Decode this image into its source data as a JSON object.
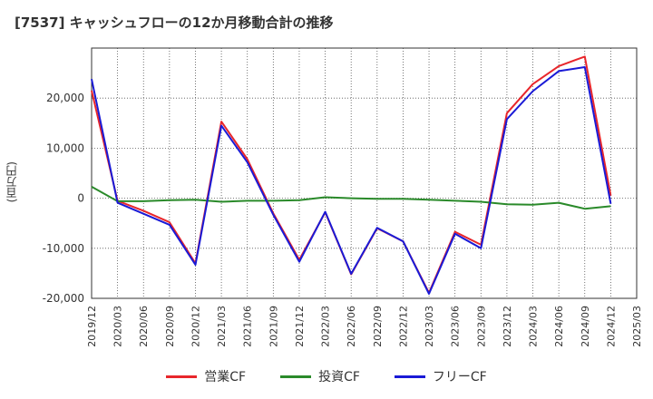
{
  "chart_title": "[7537]  キャッシュフローの12か月移動合計の推移",
  "chart_data": {
    "type": "line",
    "title": "[7537]  キャッシュフローの12か月移動合計の推移",
    "ylabel": "(百万円)",
    "xlabel": "",
    "ylim": [
      -20000,
      30000
    ],
    "y_ticks": [
      -20000,
      -10000,
      0,
      10000,
      20000
    ],
    "y_tick_labels": [
      "-20,000",
      "-10,000",
      "0",
      "10,000",
      "20,000"
    ],
    "x_tick_labels": [
      "2019/12",
      "2020/03",
      "2020/06",
      "2020/09",
      "2020/12",
      "2021/03",
      "2021/06",
      "2021/09",
      "2021/12",
      "2022/03",
      "2022/06",
      "2022/09",
      "2022/12",
      "2023/03",
      "2023/06",
      "2023/09",
      "2023/12",
      "2024/03",
      "2024/06",
      "2024/09",
      "2024/12",
      "2025/03"
    ],
    "grid": true,
    "legend_position": "bottom",
    "series": [
      {
        "name": "営業CF",
        "color": "#e8262b",
        "x": [
          "2019/12",
          "2020/03",
          "2020/06",
          "2020/09",
          "2020/12",
          "2021/03",
          "2021/06",
          "2021/09",
          "2021/12",
          "2022/03",
          "2022/06",
          "2022/09",
          "2022/12",
          "2023/03",
          "2023/06",
          "2023/09",
          "2023/12",
          "2024/03",
          "2024/06",
          "2024/09",
          "2024/12"
        ],
        "values": [
          21500,
          -500,
          -2500,
          -4800,
          -13000,
          15300,
          7800,
          -3000,
          -12300,
          -2800,
          -15200,
          -6000,
          -8600,
          -18900,
          -6700,
          -9300,
          17000,
          22800,
          26400,
          28300,
          500
        ]
      },
      {
        "name": "投資CF",
        "color": "#2a8a2a",
        "x": [
          "2019/12",
          "2020/03",
          "2020/06",
          "2020/09",
          "2020/12",
          "2021/03",
          "2021/06",
          "2021/09",
          "2021/12",
          "2022/03",
          "2022/06",
          "2022/09",
          "2022/12",
          "2023/03",
          "2023/06",
          "2023/09",
          "2023/12",
          "2024/03",
          "2024/06",
          "2024/09",
          "2024/12"
        ],
        "values": [
          2300,
          -600,
          -600,
          -400,
          -300,
          -700,
          -500,
          -500,
          -400,
          200,
          0,
          -100,
          -100,
          -300,
          -500,
          -700,
          -1200,
          -1300,
          -900,
          -2100,
          -1600
        ]
      },
      {
        "name": "フリーCF",
        "color": "#1a1ad6",
        "x": [
          "2019/12",
          "2020/03",
          "2020/06",
          "2020/09",
          "2020/12",
          "2021/03",
          "2021/06",
          "2021/09",
          "2021/12",
          "2022/03",
          "2022/06",
          "2022/09",
          "2022/12",
          "2023/03",
          "2023/06",
          "2023/09",
          "2023/12",
          "2024/03",
          "2024/06",
          "2024/09",
          "2024/12"
        ],
        "values": [
          23800,
          -900,
          -3100,
          -5300,
          -13300,
          14500,
          7200,
          -3300,
          -12700,
          -2700,
          -15100,
          -5900,
          -8600,
          -19100,
          -7100,
          -10000,
          15800,
          21400,
          25400,
          26200,
          -1100
        ]
      }
    ]
  }
}
